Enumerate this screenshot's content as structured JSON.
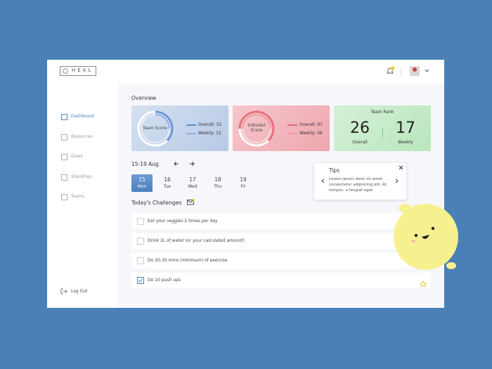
{
  "header": {
    "logo": "HEAL"
  },
  "sidebar": {
    "nav": [
      "Dashboard",
      "Resources",
      "Goals",
      "Standings",
      "Teams"
    ],
    "logout": "Log Out"
  },
  "overview": {
    "title": "Overview",
    "team_score": {
      "label": "Team Score",
      "overall": "Overall: 32",
      "weekly": "Weekly: 12"
    },
    "individual_score": {
      "label": "Individul Score",
      "overall": "Overall: 97",
      "weekly": "Weekly: 36"
    },
    "team_rank": {
      "label": "Team Rank",
      "overall_value": 26,
      "overall_label": "Overall",
      "weekly_value": 17,
      "weekly_label": "Weekly"
    }
  },
  "calendar": {
    "range": "15-19 Aug",
    "days": [
      {
        "date": 15,
        "day": "Mon"
      },
      {
        "date": 16,
        "day": "Tue"
      },
      {
        "date": 17,
        "day": "Wed"
      },
      {
        "date": 18,
        "day": "Thu"
      },
      {
        "date": 19,
        "day": "Fri"
      }
    ]
  },
  "tips": {
    "title": "Tips",
    "text": "Lorem ipsum dolor sit amet, consectetur adipiscing elit. At tempor, a feugiat eget."
  },
  "challenges": {
    "title": "Today's Challenges",
    "items": [
      {
        "text": "Eat your veggies 2 times per day",
        "done": false
      },
      {
        "text": "Drink 2L of water (or your calculated amount)",
        "done": false
      },
      {
        "text": "Do 20-30 mins (minimum) of exercise",
        "done": false
      },
      {
        "text": "Do 10 push ups",
        "done": true
      }
    ]
  }
}
